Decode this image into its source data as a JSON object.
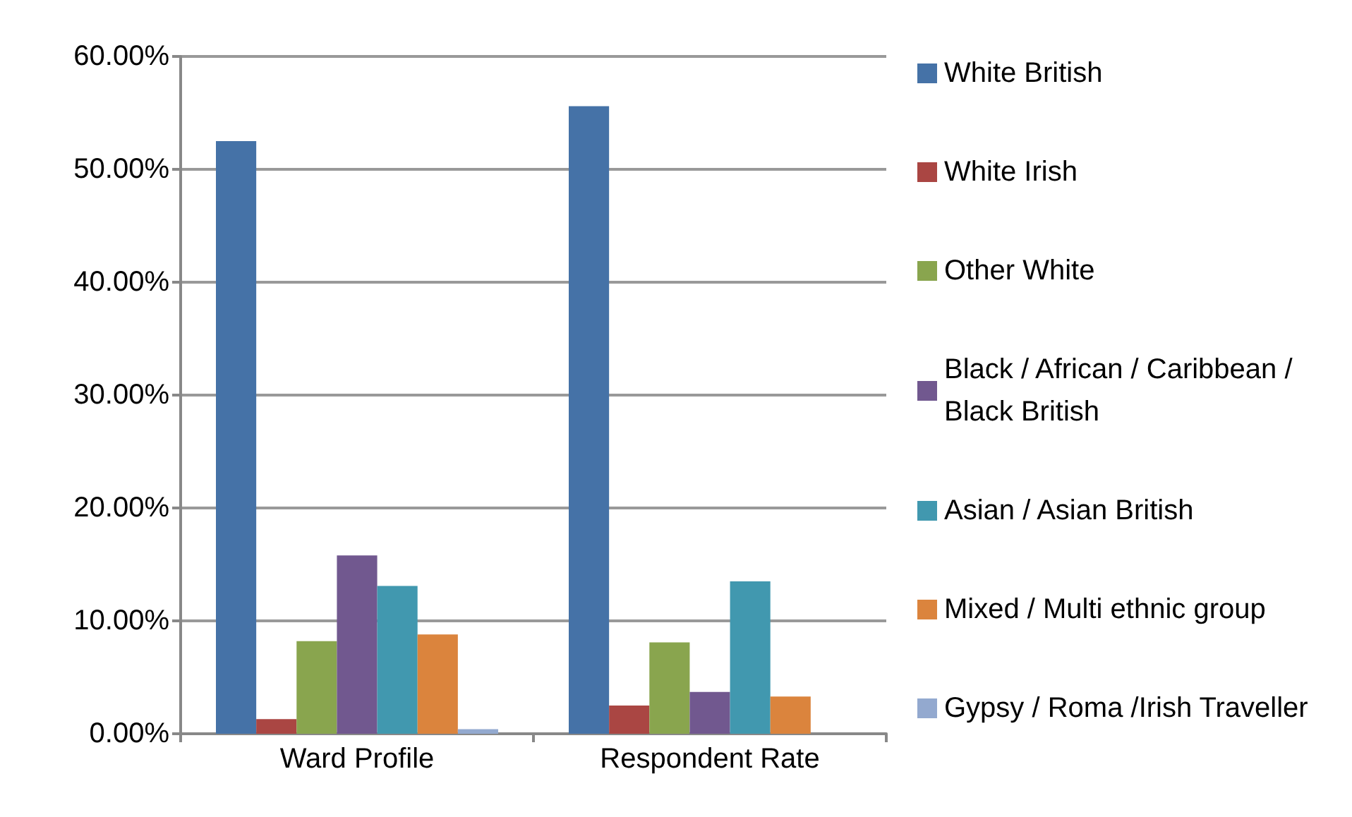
{
  "chart_data": {
    "type": "bar",
    "categories": [
      "Ward Profile",
      "Respondent Rate"
    ],
    "series": [
      {
        "name": "White British",
        "color": "#4572a7",
        "values": [
          52.5,
          55.6
        ]
      },
      {
        "name": "White Irish",
        "color": "#aa4643",
        "values": [
          1.3,
          2.5
        ]
      },
      {
        "name": "Other White",
        "color": "#89a54e",
        "values": [
          8.2,
          8.1
        ]
      },
      {
        "name": "Black / African / Caribbean / Black British",
        "color": "#71588f",
        "values": [
          15.8,
          3.7
        ]
      },
      {
        "name": "Asian / Asian British",
        "color": "#4198af",
        "values": [
          13.1,
          13.5
        ]
      },
      {
        "name": "Mixed / Multi ethnic group",
        "color": "#db843d",
        "values": [
          8.8,
          3.3
        ]
      },
      {
        "name": "Gypsy / Roma /Irish Traveller",
        "color": "#93a9cf",
        "values": [
          0.4,
          0
        ]
      }
    ],
    "ylim": [
      0,
      60
    ],
    "yticks": [
      {
        "value": 0,
        "label": "0.00%"
      },
      {
        "value": 10,
        "label": "10.00%"
      },
      {
        "value": 20,
        "label": "20.00%"
      },
      {
        "value": 30,
        "label": "30.00%"
      },
      {
        "value": 40,
        "label": "40.00%"
      },
      {
        "value": 50,
        "label": "50.00%"
      },
      {
        "value": 60,
        "label": "60.00%"
      }
    ],
    "grid": "y",
    "legend": "right"
  }
}
